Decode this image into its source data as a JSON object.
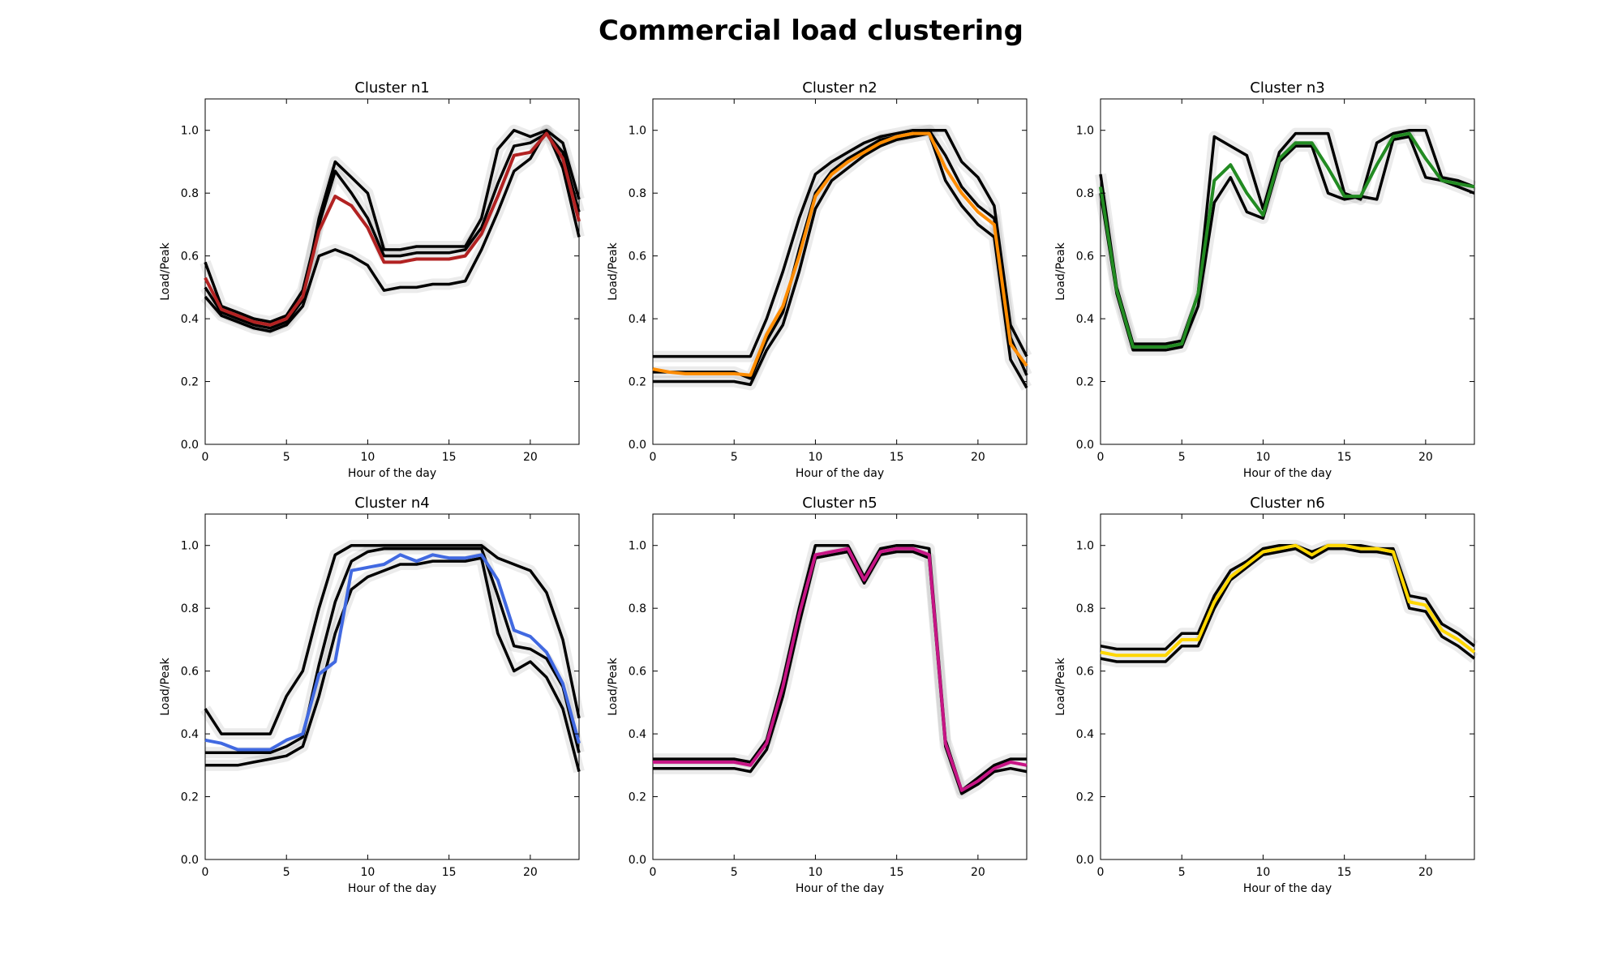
{
  "figure_title": "Commercial load clustering",
  "chart_data": [
    {
      "type": "line",
      "title": "Cluster n1",
      "xlabel": "Hour of the day",
      "ylabel": "Load/Peak",
      "xlim": [
        0,
        23
      ],
      "ylim": [
        0.0,
        1.1
      ],
      "xticks": [
        "0",
        "5",
        "10",
        "15",
        "20"
      ],
      "yticks": [
        "0.0",
        "0.2",
        "0.4",
        "0.6",
        "0.8",
        "1.0"
      ],
      "x": [
        0,
        1,
        2,
        3,
        4,
        5,
        6,
        7,
        8,
        9,
        10,
        11,
        12,
        13,
        14,
        15,
        16,
        17,
        18,
        19,
        20,
        21,
        22,
        23
      ],
      "series": [
        {
          "color": "#b22222",
          "role": "centroid",
          "values": [
            0.53,
            0.43,
            0.41,
            0.39,
            0.38,
            0.4,
            0.47,
            0.68,
            0.79,
            0.76,
            0.69,
            0.58,
            0.58,
            0.59,
            0.59,
            0.59,
            0.6,
            0.67,
            0.79,
            0.92,
            0.93,
            0.99,
            0.91,
            0.71
          ]
        },
        {
          "color": "#000000",
          "role": "member",
          "values": [
            0.5,
            0.42,
            0.4,
            0.38,
            0.37,
            0.39,
            0.46,
            0.72,
            0.9,
            0.85,
            0.8,
            0.62,
            0.62,
            0.63,
            0.63,
            0.63,
            0.63,
            0.72,
            0.94,
            1.0,
            0.98,
            1.0,
            0.96,
            0.78
          ]
        },
        {
          "color": "#000000",
          "role": "member",
          "values": [
            0.47,
            0.41,
            0.39,
            0.37,
            0.36,
            0.38,
            0.44,
            0.6,
            0.62,
            0.6,
            0.57,
            0.49,
            0.5,
            0.5,
            0.51,
            0.51,
            0.52,
            0.62,
            0.74,
            0.87,
            0.91,
            1.0,
            0.88,
            0.66
          ]
        },
        {
          "color": "#000000",
          "role": "member",
          "values": [
            0.58,
            0.44,
            0.42,
            0.4,
            0.39,
            0.41,
            0.49,
            0.7,
            0.87,
            0.8,
            0.72,
            0.6,
            0.6,
            0.61,
            0.61,
            0.61,
            0.62,
            0.69,
            0.83,
            0.95,
            0.96,
            0.99,
            0.93,
            0.74
          ]
        }
      ]
    },
    {
      "type": "line",
      "title": "Cluster n2",
      "xlabel": "Hour of the day",
      "ylabel": "Load/Peak",
      "xlim": [
        0,
        23
      ],
      "ylim": [
        0.0,
        1.1
      ],
      "xticks": [
        "0",
        "5",
        "10",
        "15",
        "20"
      ],
      "yticks": [
        "0.0",
        "0.2",
        "0.4",
        "0.6",
        "0.8",
        "1.0"
      ],
      "x": [
        0,
        1,
        2,
        3,
        4,
        5,
        6,
        7,
        8,
        9,
        10,
        11,
        12,
        13,
        14,
        15,
        16,
        17,
        18,
        19,
        20,
        21,
        22,
        23
      ],
      "series": [
        {
          "color": "#ff8c00",
          "role": "centroid",
          "values": [
            0.24,
            0.23,
            0.225,
            0.225,
            0.225,
            0.225,
            0.22,
            0.35,
            0.44,
            0.6,
            0.79,
            0.86,
            0.9,
            0.93,
            0.96,
            0.98,
            0.99,
            0.99,
            0.88,
            0.8,
            0.74,
            0.7,
            0.32,
            0.25
          ]
        },
        {
          "color": "#000000",
          "role": "member",
          "values": [
            0.28,
            0.28,
            0.28,
            0.28,
            0.28,
            0.28,
            0.28,
            0.4,
            0.55,
            0.72,
            0.86,
            0.9,
            0.93,
            0.96,
            0.98,
            0.99,
            1.0,
            1.0,
            1.0,
            0.9,
            0.85,
            0.76,
            0.38,
            0.28
          ]
        },
        {
          "color": "#000000",
          "role": "member",
          "values": [
            0.2,
            0.2,
            0.2,
            0.2,
            0.2,
            0.2,
            0.19,
            0.3,
            0.38,
            0.55,
            0.75,
            0.84,
            0.88,
            0.92,
            0.95,
            0.97,
            0.98,
            0.99,
            0.84,
            0.76,
            0.7,
            0.66,
            0.27,
            0.18
          ]
        },
        {
          "color": "#000000",
          "role": "member",
          "values": [
            0.23,
            0.23,
            0.23,
            0.23,
            0.23,
            0.23,
            0.21,
            0.33,
            0.42,
            0.62,
            0.8,
            0.87,
            0.91,
            0.94,
            0.97,
            0.98,
            0.99,
            1.0,
            0.92,
            0.82,
            0.76,
            0.72,
            0.34,
            0.22
          ]
        }
      ]
    },
    {
      "type": "line",
      "title": "Cluster n3",
      "xlabel": "Hour of the day",
      "ylabel": "Load/Peak",
      "xlim": [
        0,
        23
      ],
      "ylim": [
        0.0,
        1.1
      ],
      "xticks": [
        "0",
        "5",
        "10",
        "15",
        "20"
      ],
      "yticks": [
        "0.0",
        "0.2",
        "0.4",
        "0.6",
        "0.8",
        "1.0"
      ],
      "x": [
        0,
        1,
        2,
        3,
        4,
        5,
        6,
        7,
        8,
        9,
        10,
        11,
        12,
        13,
        14,
        15,
        16,
        17,
        18,
        19,
        20,
        21,
        22,
        23
      ],
      "series": [
        {
          "color": "#228b22",
          "role": "centroid",
          "values": [
            0.82,
            0.49,
            0.31,
            0.31,
            0.31,
            0.32,
            0.48,
            0.84,
            0.89,
            0.8,
            0.73,
            0.91,
            0.96,
            0.96,
            0.88,
            0.79,
            0.79,
            0.89,
            0.98,
            0.99,
            0.91,
            0.84,
            0.83,
            0.82
          ]
        },
        {
          "color": "#000000",
          "role": "member",
          "values": [
            0.86,
            0.5,
            0.32,
            0.32,
            0.32,
            0.33,
            0.48,
            0.98,
            0.95,
            0.92,
            0.75,
            0.93,
            0.99,
            0.99,
            0.99,
            0.8,
            0.78,
            0.96,
            0.99,
            1.0,
            1.0,
            0.85,
            0.84,
            0.82
          ]
        },
        {
          "color": "#000000",
          "role": "member",
          "values": [
            0.8,
            0.48,
            0.3,
            0.3,
            0.3,
            0.31,
            0.44,
            0.77,
            0.85,
            0.74,
            0.72,
            0.9,
            0.95,
            0.95,
            0.8,
            0.78,
            0.79,
            0.78,
            0.97,
            0.98,
            0.85,
            0.84,
            0.82,
            0.8
          ]
        }
      ]
    },
    {
      "type": "line",
      "title": "Cluster n4",
      "xlabel": "Hour of the day",
      "ylabel": "Load/Peak",
      "xlim": [
        0,
        23
      ],
      "ylim": [
        0.0,
        1.1
      ],
      "xticks": [
        "0",
        "5",
        "10",
        "15",
        "20"
      ],
      "yticks": [
        "0.0",
        "0.2",
        "0.4",
        "0.6",
        "0.8",
        "1.0"
      ],
      "x": [
        0,
        1,
        2,
        3,
        4,
        5,
        6,
        7,
        8,
        9,
        10,
        11,
        12,
        13,
        14,
        15,
        16,
        17,
        18,
        19,
        20,
        21,
        22,
        23
      ],
      "series": [
        {
          "color": "#4169e1",
          "role": "centroid",
          "values": [
            0.38,
            0.37,
            0.35,
            0.35,
            0.35,
            0.38,
            0.4,
            0.59,
            0.63,
            0.92,
            0.93,
            0.94,
            0.97,
            0.95,
            0.97,
            0.96,
            0.96,
            0.97,
            0.89,
            0.73,
            0.71,
            0.66,
            0.56,
            0.37
          ]
        },
        {
          "color": "#000000",
          "role": "member",
          "values": [
            0.48,
            0.4,
            0.4,
            0.4,
            0.4,
            0.52,
            0.6,
            0.8,
            0.97,
            1.0,
            1.0,
            1.0,
            1.0,
            1.0,
            1.0,
            1.0,
            1.0,
            1.0,
            0.96,
            0.94,
            0.92,
            0.85,
            0.7,
            0.45
          ]
        },
        {
          "color": "#000000",
          "role": "member",
          "values": [
            0.3,
            0.3,
            0.3,
            0.31,
            0.32,
            0.33,
            0.36,
            0.52,
            0.72,
            0.86,
            0.9,
            0.92,
            0.94,
            0.94,
            0.95,
            0.95,
            0.95,
            0.96,
            0.72,
            0.6,
            0.63,
            0.58,
            0.48,
            0.28
          ]
        },
        {
          "color": "#000000",
          "role": "member",
          "values": [
            0.34,
            0.34,
            0.34,
            0.34,
            0.34,
            0.36,
            0.39,
            0.62,
            0.82,
            0.95,
            0.98,
            0.99,
            0.99,
            0.99,
            0.99,
            0.99,
            0.99,
            0.99,
            0.84,
            0.68,
            0.67,
            0.64,
            0.55,
            0.34
          ]
        }
      ]
    },
    {
      "type": "line",
      "title": "Cluster n5",
      "xlabel": "Hour of the day",
      "ylabel": "Load/Peak",
      "xlim": [
        0,
        23
      ],
      "ylim": [
        0.0,
        1.1
      ],
      "xticks": [
        "0",
        "5",
        "10",
        "15",
        "20"
      ],
      "yticks": [
        "0.0",
        "0.2",
        "0.4",
        "0.6",
        "0.8",
        "1.0"
      ],
      "x": [
        0,
        1,
        2,
        3,
        4,
        5,
        6,
        7,
        8,
        9,
        10,
        11,
        12,
        13,
        14,
        15,
        16,
        17,
        18,
        19,
        20,
        21,
        22,
        23
      ],
      "series": [
        {
          "color": "#c71585",
          "role": "centroid",
          "values": [
            0.31,
            0.31,
            0.31,
            0.31,
            0.31,
            0.31,
            0.3,
            0.37,
            0.55,
            0.78,
            0.97,
            0.98,
            0.99,
            0.89,
            0.98,
            0.99,
            0.99,
            0.97,
            0.37,
            0.22,
            0.25,
            0.29,
            0.31,
            0.3
          ]
        },
        {
          "color": "#000000",
          "role": "member",
          "values": [
            0.32,
            0.32,
            0.32,
            0.32,
            0.32,
            0.32,
            0.31,
            0.38,
            0.57,
            0.8,
            1.0,
            1.0,
            1.0,
            0.9,
            0.99,
            1.0,
            1.0,
            0.99,
            0.38,
            0.22,
            0.26,
            0.3,
            0.32,
            0.32
          ]
        },
        {
          "color": "#000000",
          "role": "member",
          "values": [
            0.29,
            0.29,
            0.29,
            0.29,
            0.29,
            0.29,
            0.28,
            0.35,
            0.52,
            0.75,
            0.96,
            0.97,
            0.98,
            0.88,
            0.97,
            0.98,
            0.98,
            0.96,
            0.36,
            0.21,
            0.24,
            0.28,
            0.29,
            0.28
          ]
        }
      ]
    },
    {
      "type": "line",
      "title": "Cluster n6",
      "xlabel": "Hour of the day",
      "ylabel": "Load/Peak",
      "xlim": [
        0,
        23
      ],
      "ylim": [
        0.0,
        1.1
      ],
      "xticks": [
        "0",
        "5",
        "10",
        "15",
        "20"
      ],
      "yticks": [
        "0.0",
        "0.2",
        "0.4",
        "0.6",
        "0.8",
        "1.0"
      ],
      "x": [
        0,
        1,
        2,
        3,
        4,
        5,
        6,
        7,
        8,
        9,
        10,
        11,
        12,
        13,
        14,
        15,
        16,
        17,
        18,
        19,
        20,
        21,
        22,
        23
      ],
      "series": [
        {
          "color": "#ffd700",
          "role": "centroid",
          "values": [
            0.66,
            0.65,
            0.65,
            0.65,
            0.65,
            0.7,
            0.7,
            0.82,
            0.9,
            0.94,
            0.98,
            0.99,
            1.0,
            0.97,
            1.0,
            1.0,
            0.99,
            0.99,
            0.98,
            0.82,
            0.81,
            0.73,
            0.7,
            0.66
          ]
        },
        {
          "color": "#000000",
          "role": "member",
          "values": [
            0.68,
            0.67,
            0.67,
            0.67,
            0.67,
            0.72,
            0.72,
            0.84,
            0.92,
            0.95,
            0.99,
            1.0,
            1.0,
            0.98,
            1.0,
            1.0,
            1.0,
            0.99,
            0.99,
            0.84,
            0.83,
            0.75,
            0.72,
            0.68
          ]
        },
        {
          "color": "#000000",
          "role": "member",
          "values": [
            0.64,
            0.63,
            0.63,
            0.63,
            0.63,
            0.68,
            0.68,
            0.8,
            0.89,
            0.93,
            0.97,
            0.98,
            0.99,
            0.96,
            0.99,
            0.99,
            0.98,
            0.98,
            0.97,
            0.8,
            0.79,
            0.71,
            0.68,
            0.64
          ]
        }
      ]
    }
  ]
}
